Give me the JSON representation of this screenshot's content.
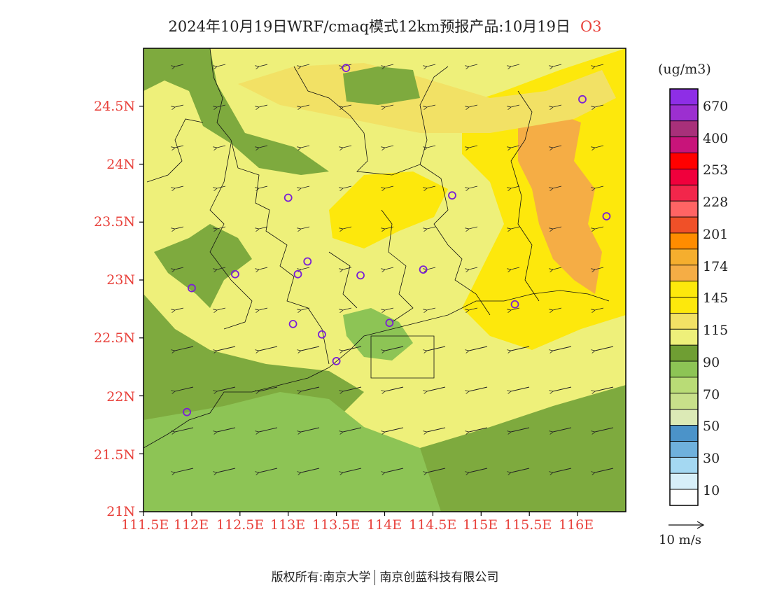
{
  "title": {
    "text": "2024年10月19日WRF/cmaq模式12km预报产品:10月19日",
    "species": "O3"
  },
  "map": {
    "lat_ticks": [
      "21N",
      "21.5N",
      "22N",
      "22.5N",
      "23N",
      "23.5N",
      "24N",
      "24.5N"
    ],
    "lon_ticks": [
      "111.5E",
      "112E",
      "112.5E",
      "113E",
      "113.5E",
      "114E",
      "114.5E",
      "115E",
      "115.5E",
      "116E"
    ],
    "lat_range": [
      21,
      25
    ],
    "lon_range": [
      111.5,
      116.5
    ],
    "background_level_color": "#eef07a",
    "regions": [
      {
        "name": "northwest-hills",
        "color": "#7eaa3e"
      },
      {
        "name": "southwest-coast",
        "color": "#7eaa3e"
      },
      {
        "name": "south-sea",
        "color": "#8dc455"
      },
      {
        "name": "southeast-sea",
        "color": "#7eaa3e"
      },
      {
        "name": "east-high",
        "color": "#fde80c"
      },
      {
        "name": "east-peak",
        "color": "#f5ad45"
      },
      {
        "name": "central-high",
        "color": "#fde80c"
      },
      {
        "name": "moderate-band",
        "color": "#f2e165"
      }
    ],
    "stations": [
      {
        "lon": 113.6,
        "lat": 24.83
      },
      {
        "lon": 116.05,
        "lat": 24.56
      },
      {
        "lon": 113.0,
        "lat": 23.71
      },
      {
        "lon": 114.7,
        "lat": 23.73
      },
      {
        "lon": 116.3,
        "lat": 23.55
      },
      {
        "lon": 113.2,
        "lat": 23.16
      },
      {
        "lon": 112.45,
        "lat": 23.05
      },
      {
        "lon": 113.1,
        "lat": 23.05
      },
      {
        "lon": 113.75,
        "lat": 23.04
      },
      {
        "lon": 114.4,
        "lat": 23.09
      },
      {
        "lon": 112.0,
        "lat": 22.93
      },
      {
        "lon": 115.35,
        "lat": 22.79
      },
      {
        "lon": 113.05,
        "lat": 22.62
      },
      {
        "lon": 113.35,
        "lat": 22.53
      },
      {
        "lon": 114.05,
        "lat": 22.63
      },
      {
        "lon": 113.5,
        "lat": 22.3
      },
      {
        "lon": 111.95,
        "lat": 21.86
      }
    ],
    "wind_reference": "10 m/s"
  },
  "colorbar": {
    "unit": "(ug/m3)",
    "colors": [
      "#8e2ee6",
      "#9c2fd0",
      "#a8307a",
      "#c8147a",
      "#ff0000",
      "#f0003c",
      "#f2264b",
      "#ff6464",
      "#f05028",
      "#ff8c00",
      "#f5ae2e",
      "#f5ad45",
      "#fde80c",
      "#fde80c",
      "#f2e165",
      "#eef07a",
      "#6f9e33",
      "#8dc455",
      "#b9dc76",
      "#c8e08a",
      "#dceab6",
      "#4b93c9",
      "#6fb1dd",
      "#a4d8f2",
      "#d7eff9",
      "#ffffff"
    ],
    "labels": [
      "670",
      "400",
      "253",
      "228",
      "201",
      "174",
      "145",
      "115",
      "90",
      "70",
      "50",
      "30",
      "10"
    ]
  },
  "footer": {
    "copyright_left": "版权所有:南京大学",
    "copyright_right": "南京创蓝科技有限公司"
  }
}
